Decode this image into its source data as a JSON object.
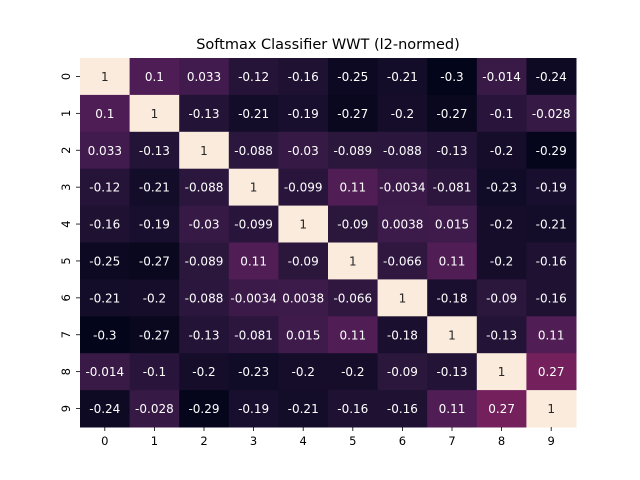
{
  "chart_data": {
    "type": "heatmap",
    "title": "Softmax Classifier WWT (l2-normed)",
    "xlabel": "",
    "ylabel": "",
    "x_labels": [
      "0",
      "1",
      "2",
      "3",
      "4",
      "5",
      "6",
      "7",
      "8",
      "9"
    ],
    "y_labels": [
      "0",
      "1",
      "2",
      "3",
      "4",
      "5",
      "6",
      "7",
      "8",
      "9"
    ],
    "values": [
      [
        1,
        0.1,
        0.033,
        -0.12,
        -0.16,
        -0.25,
        -0.21,
        -0.3,
        -0.014,
        -0.24
      ],
      [
        0.1,
        1,
        -0.13,
        -0.21,
        -0.19,
        -0.27,
        -0.2,
        -0.27,
        -0.1,
        -0.028
      ],
      [
        0.033,
        -0.13,
        1,
        -0.088,
        -0.03,
        -0.089,
        -0.088,
        -0.13,
        -0.2,
        -0.29
      ],
      [
        -0.12,
        -0.21,
        -0.088,
        1,
        -0.099,
        0.11,
        -0.0034,
        -0.081,
        -0.23,
        -0.19
      ],
      [
        -0.16,
        -0.19,
        -0.03,
        -0.099,
        1,
        -0.09,
        0.0038,
        0.015,
        -0.2,
        -0.21
      ],
      [
        -0.25,
        -0.27,
        -0.089,
        0.11,
        -0.09,
        1,
        -0.066,
        0.11,
        -0.2,
        -0.16
      ],
      [
        -0.21,
        -0.2,
        -0.088,
        -0.0034,
        0.0038,
        -0.066,
        1,
        -0.18,
        -0.09,
        -0.16
      ],
      [
        -0.3,
        -0.27,
        -0.13,
        -0.081,
        0.015,
        0.11,
        -0.18,
        1,
        -0.13,
        0.11
      ],
      [
        -0.014,
        -0.1,
        -0.2,
        -0.23,
        -0.2,
        -0.2,
        -0.09,
        -0.13,
        1,
        0.27
      ],
      [
        -0.24,
        -0.028,
        -0.29,
        -0.19,
        -0.21,
        -0.16,
        -0.16,
        0.11,
        0.27,
        1
      ]
    ],
    "value_range": [
      -0.3,
      1
    ],
    "colormap": "rocket",
    "annotations": true,
    "grid": false,
    "colorbar": false
  }
}
